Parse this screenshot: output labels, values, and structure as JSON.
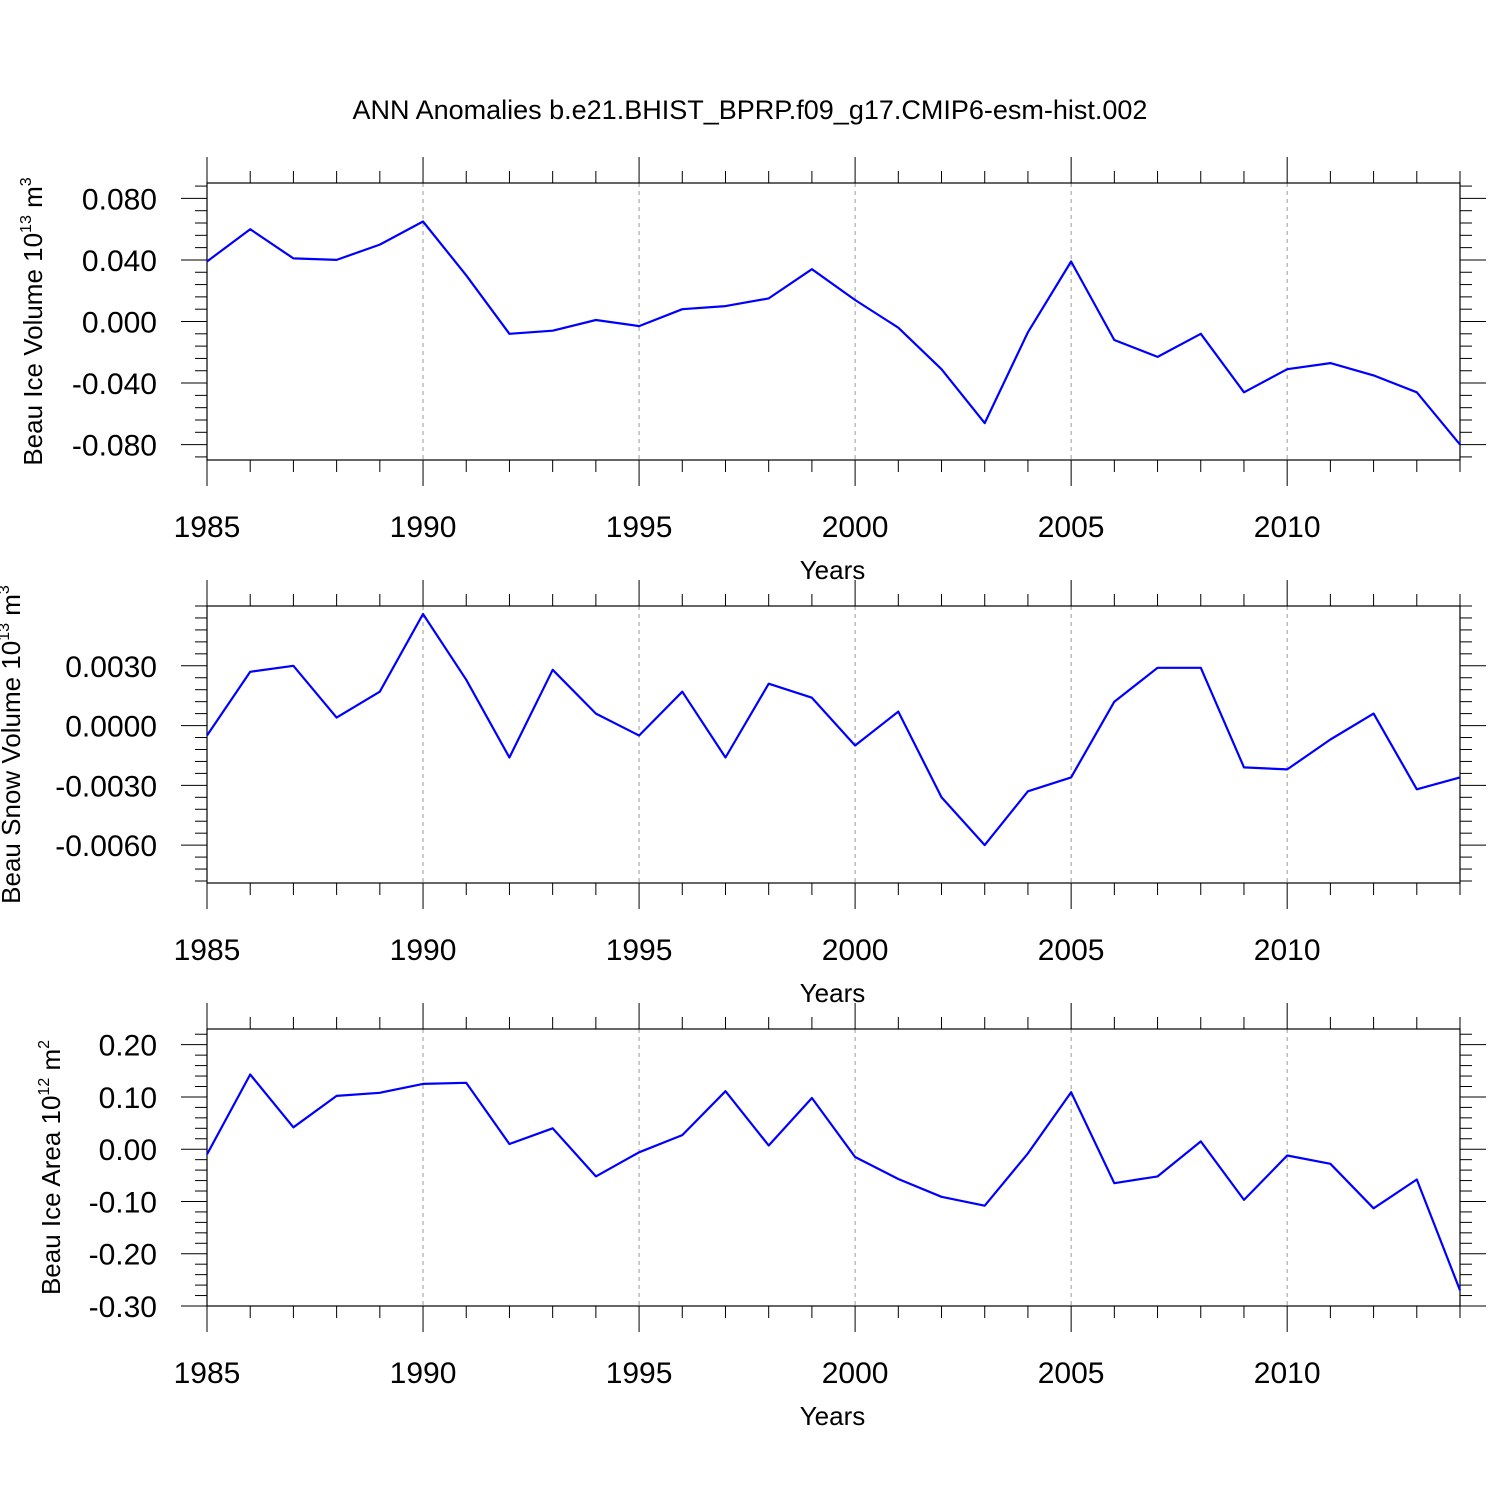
{
  "title": "ANN Anomalies b.e21.BHIST_BPRP.f09_g17.CMIP6-esm-hist.002",
  "chart_data": [
    {
      "type": "line",
      "title": "ANN Anomalies b.e21.BHIST_BPRP.f09_g17.CMIP6-esm-hist.002",
      "xlabel": "Years",
      "ylabel": {
        "prefix": "Beau Ice Volume 10",
        "exponent": "13",
        "unit": " m",
        "unit_exponent": "3"
      },
      "xlim": [
        1985,
        2014
      ],
      "ylim": [
        -0.09,
        0.09
      ],
      "xticks": [
        1985,
        1990,
        1995,
        2000,
        2005,
        2010
      ],
      "yticks": [
        -0.08,
        -0.04,
        0.0,
        0.04,
        0.08
      ],
      "ytick_labels": [
        "-0.080",
        "-0.040",
        "0.000",
        "0.040",
        "0.080"
      ],
      "grid": "vertical dashed at major x ticks",
      "series": [
        {
          "color": "#0000ff",
          "x": [
            1985,
            1986,
            1987,
            1988,
            1989,
            1990,
            1991,
            1992,
            1993,
            1994,
            1995,
            1996,
            1997,
            1998,
            1999,
            2000,
            2001,
            2002,
            2003,
            2004,
            2005,
            2006,
            2007,
            2008,
            2009,
            2010,
            2011,
            2012,
            2013,
            2014
          ],
          "y": [
            0.039,
            0.06,
            0.041,
            0.04,
            0.05,
            0.065,
            0.03,
            -0.008,
            -0.006,
            0.001,
            -0.003,
            0.008,
            0.01,
            0.015,
            0.034,
            0.014,
            -0.004,
            -0.031,
            -0.066,
            -0.007,
            0.039,
            -0.012,
            -0.023,
            -0.008,
            -0.046,
            -0.031,
            -0.027,
            -0.035,
            -0.046,
            -0.08
          ]
        }
      ]
    },
    {
      "type": "line",
      "xlabel": "Years",
      "ylabel": {
        "prefix": "Beau Snow Volume 10",
        "exponent": "13",
        "unit": " m",
        "unit_exponent": "3"
      },
      "xlim": [
        1985,
        2014
      ],
      "ylim": [
        -0.0079,
        0.006
      ],
      "xticks": [
        1985,
        1990,
        1995,
        2000,
        2005,
        2010
      ],
      "yticks": [
        -0.006,
        -0.003,
        0.0,
        0.003
      ],
      "ytick_labels": [
        "-0.0060",
        "-0.0030",
        "0.0000",
        "0.0030"
      ],
      "grid": "vertical dashed at major x ticks",
      "series": [
        {
          "color": "#0000ff",
          "x": [
            1985,
            1986,
            1987,
            1988,
            1989,
            1990,
            1991,
            1992,
            1993,
            1994,
            1995,
            1996,
            1997,
            1998,
            1999,
            2000,
            2001,
            2002,
            2003,
            2004,
            2005,
            2006,
            2007,
            2008,
            2009,
            2010,
            2011,
            2012,
            2013,
            2014
          ],
          "y": [
            -0.0005,
            0.0027,
            0.003,
            0.0004,
            0.0017,
            0.0056,
            0.0023,
            -0.0016,
            0.0028,
            0.0006,
            -0.0005,
            0.0017,
            -0.0016,
            0.0021,
            0.0014,
            -0.001,
            0.0007,
            -0.0036,
            -0.006,
            -0.0033,
            -0.0026,
            0.0012,
            0.0029,
            0.0029,
            -0.0021,
            -0.0022,
            -0.0007,
            0.0006,
            -0.0032,
            -0.0026
          ]
        }
      ]
    },
    {
      "type": "line",
      "xlabel": "Years",
      "ylabel": {
        "prefix": "Beau Ice Area 10",
        "exponent": "12",
        "unit": " m",
        "unit_exponent": "2"
      },
      "xlim": [
        1985,
        2014
      ],
      "ylim": [
        -0.3,
        0.23
      ],
      "xticks": [
        1985,
        1990,
        1995,
        2000,
        2005,
        2010
      ],
      "yticks": [
        -0.3,
        -0.2,
        -0.1,
        0.0,
        0.1,
        0.2
      ],
      "ytick_labels": [
        "-0.30",
        "-0.20",
        "-0.10",
        "0.00",
        "0.10",
        "0.20"
      ],
      "grid": "vertical dashed at major x ticks",
      "series": [
        {
          "color": "#0000ff",
          "x": [
            1985,
            1986,
            1987,
            1988,
            1989,
            1990,
            1991,
            1992,
            1993,
            1994,
            1995,
            1996,
            1997,
            1998,
            1999,
            2000,
            2001,
            2002,
            2003,
            2004,
            2005,
            2006,
            2007,
            2008,
            2009,
            2010,
            2011,
            2012,
            2013,
            2014
          ],
          "y": [
            -0.01,
            0.143,
            0.042,
            0.102,
            0.108,
            0.125,
            0.127,
            0.01,
            0.04,
            -0.052,
            -0.006,
            0.027,
            0.111,
            0.007,
            0.098,
            -0.015,
            -0.057,
            -0.091,
            -0.108,
            -0.008,
            0.109,
            -0.065,
            -0.052,
            0.015,
            -0.097,
            -0.012,
            -0.028,
            -0.113,
            -0.058,
            -0.27
          ]
        }
      ]
    }
  ]
}
